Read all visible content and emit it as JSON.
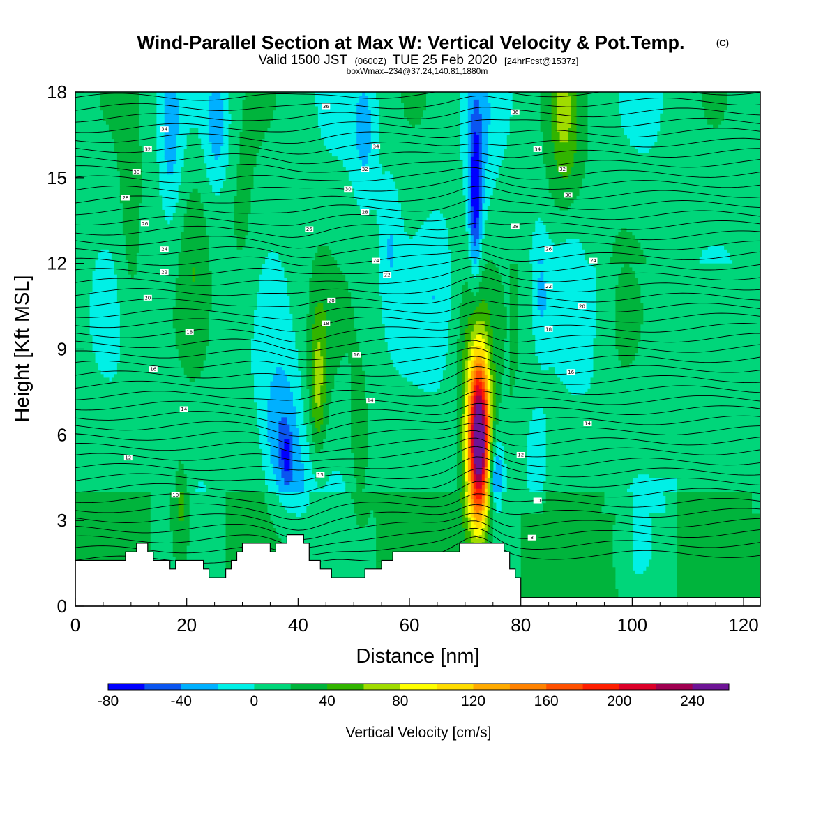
{
  "title": {
    "main": "Wind-Parallel Section at Max W: Vertical Velocity & Pot.Temp.",
    "copyright": "(C)",
    "valid_prefix": "Valid 1500 JST",
    "valid_utc": "(0600Z)",
    "valid_date": "TUE 25 Feb 2020",
    "forecast": "[24hrFcst@1537z]",
    "boxwmax": "boxWmax=234@37.24,140.81,1880m"
  },
  "chart_data": {
    "type": "heatmap",
    "xlabel": "Distance [nm]",
    "ylabel": "Height [Kft MSL]",
    "xlim": [
      0,
      123
    ],
    "ylim": [
      0,
      18
    ],
    "x_ticks": [
      0,
      20,
      40,
      60,
      80,
      100,
      120
    ],
    "y_ticks": [
      0,
      3,
      6,
      9,
      12,
      15,
      18
    ],
    "x_tick_labels": [
      "0",
      "20",
      "40",
      "60",
      "80",
      "100",
      "120"
    ],
    "y_tick_labels": [
      "0",
      "3",
      "6",
      "9",
      "12",
      "15",
      "18"
    ],
    "grid": false,
    "colorbar": {
      "title": "Vertical Velocity [cm/s]",
      "levels": [
        -80,
        -60,
        -40,
        -20,
        0,
        20,
        40,
        60,
        80,
        100,
        120,
        140,
        160,
        180,
        200,
        220,
        240,
        260
      ],
      "labels": [
        "-80",
        "-40",
        "0",
        "40",
        "80",
        "120",
        "160",
        "200",
        "240"
      ],
      "label_values": [
        -80,
        -40,
        0,
        40,
        80,
        120,
        160,
        200,
        240
      ],
      "colors": [
        "#0000ff",
        "#0a55f0",
        "#00b0ff",
        "#00f0e6",
        "#00d67a",
        "#00b43c",
        "#32b400",
        "#a0dc00",
        "#ffff00",
        "#ffdc00",
        "#ffaa00",
        "#ff8200",
        "#ff5000",
        "#ff1e00",
        "#dc0028",
        "#a00050",
        "#6e1496"
      ]
    },
    "max_w": {
      "x": 72.5,
      "y": 5.8,
      "value": 234
    },
    "terrain": [
      [
        0,
        1.6
      ],
      [
        9,
        1.6
      ],
      [
        9,
        1.9
      ],
      [
        11,
        1.9
      ],
      [
        11,
        2.2
      ],
      [
        13,
        2.2
      ],
      [
        13,
        1.9
      ],
      [
        14,
        1.9
      ],
      [
        14,
        1.6
      ],
      [
        17,
        1.6
      ],
      [
        17,
        1.3
      ],
      [
        18,
        1.3
      ],
      [
        18,
        1.6
      ],
      [
        23,
        1.6
      ],
      [
        23,
        1.3
      ],
      [
        24,
        1.3
      ],
      [
        24,
        1.0
      ],
      [
        27,
        1.0
      ],
      [
        27,
        1.3
      ],
      [
        28,
        1.3
      ],
      [
        28,
        1.6
      ],
      [
        29,
        1.6
      ],
      [
        29,
        1.9
      ],
      [
        30,
        1.9
      ],
      [
        30,
        2.2
      ],
      [
        35,
        2.2
      ],
      [
        35,
        1.9
      ],
      [
        36,
        1.9
      ],
      [
        36,
        2.2
      ],
      [
        38,
        2.2
      ],
      [
        38,
        2.5
      ],
      [
        41,
        2.5
      ],
      [
        41,
        2.2
      ],
      [
        42,
        2.2
      ],
      [
        42,
        1.6
      ],
      [
        44,
        1.6
      ],
      [
        44,
        1.3
      ],
      [
        46,
        1.3
      ],
      [
        46,
        1.0
      ],
      [
        52,
        1.0
      ],
      [
        52,
        1.3
      ],
      [
        55,
        1.3
      ],
      [
        55,
        1.6
      ],
      [
        57,
        1.6
      ],
      [
        57,
        1.9
      ],
      [
        69,
        1.9
      ],
      [
        69,
        2.2
      ],
      [
        77,
        2.2
      ],
      [
        77,
        1.9
      ],
      [
        78,
        1.9
      ],
      [
        78,
        1.3
      ],
      [
        79,
        1.3
      ],
      [
        79,
        1.0
      ],
      [
        80,
        1.0
      ],
      [
        80,
        0.3
      ],
      [
        123,
        0.3
      ]
    ],
    "theta_labels": [
      {
        "x": 45,
        "y": 17.5,
        "text": "36"
      },
      {
        "x": 16,
        "y": 16.7,
        "text": "34"
      },
      {
        "x": 13,
        "y": 16.0,
        "text": "32"
      },
      {
        "x": 11,
        "y": 15.2,
        "text": "30"
      },
      {
        "x": 9,
        "y": 14.3,
        "text": "28"
      },
      {
        "x": 12.5,
        "y": 13.4,
        "text": "26"
      },
      {
        "x": 16,
        "y": 12.5,
        "text": "24"
      },
      {
        "x": 16,
        "y": 11.7,
        "text": "22"
      },
      {
        "x": 13,
        "y": 10.8,
        "text": "20"
      },
      {
        "x": 20.5,
        "y": 9.6,
        "text": "18"
      },
      {
        "x": 14,
        "y": 8.3,
        "text": "16"
      },
      {
        "x": 19.5,
        "y": 6.9,
        "text": "14"
      },
      {
        "x": 9.5,
        "y": 5.2,
        "text": "12"
      },
      {
        "x": 18,
        "y": 3.9,
        "text": "10"
      },
      {
        "x": 54,
        "y": 16.1,
        "text": "34"
      },
      {
        "x": 52,
        "y": 15.3,
        "text": "32"
      },
      {
        "x": 49,
        "y": 14.6,
        "text": "30"
      },
      {
        "x": 52,
        "y": 13.8,
        "text": "28"
      },
      {
        "x": 42,
        "y": 13.2,
        "text": "26"
      },
      {
        "x": 54,
        "y": 12.1,
        "text": "24"
      },
      {
        "x": 56,
        "y": 11.6,
        "text": "22"
      },
      {
        "x": 46,
        "y": 10.7,
        "text": "20"
      },
      {
        "x": 45,
        "y": 9.9,
        "text": "18"
      },
      {
        "x": 50.5,
        "y": 8.8,
        "text": "16"
      },
      {
        "x": 53,
        "y": 7.2,
        "text": "14"
      },
      {
        "x": 44,
        "y": 4.6,
        "text": "13"
      },
      {
        "x": 79,
        "y": 17.3,
        "text": "36"
      },
      {
        "x": 83,
        "y": 16.0,
        "text": "34"
      },
      {
        "x": 87.5,
        "y": 15.3,
        "text": "32"
      },
      {
        "x": 88.5,
        "y": 14.4,
        "text": "30"
      },
      {
        "x": 79,
        "y": 13.3,
        "text": "28"
      },
      {
        "x": 85,
        "y": 12.5,
        "text": "26"
      },
      {
        "x": 93,
        "y": 12.1,
        "text": "24"
      },
      {
        "x": 85,
        "y": 11.2,
        "text": "22"
      },
      {
        "x": 91,
        "y": 10.5,
        "text": "20"
      },
      {
        "x": 85,
        "y": 9.7,
        "text": "18"
      },
      {
        "x": 89,
        "y": 8.2,
        "text": "16"
      },
      {
        "x": 92,
        "y": 6.4,
        "text": "14"
      },
      {
        "x": 80,
        "y": 5.3,
        "text": "12"
      },
      {
        "x": 83,
        "y": 3.7,
        "text": "10"
      },
      {
        "x": 82,
        "y": 2.4,
        "text": "8"
      }
    ]
  }
}
